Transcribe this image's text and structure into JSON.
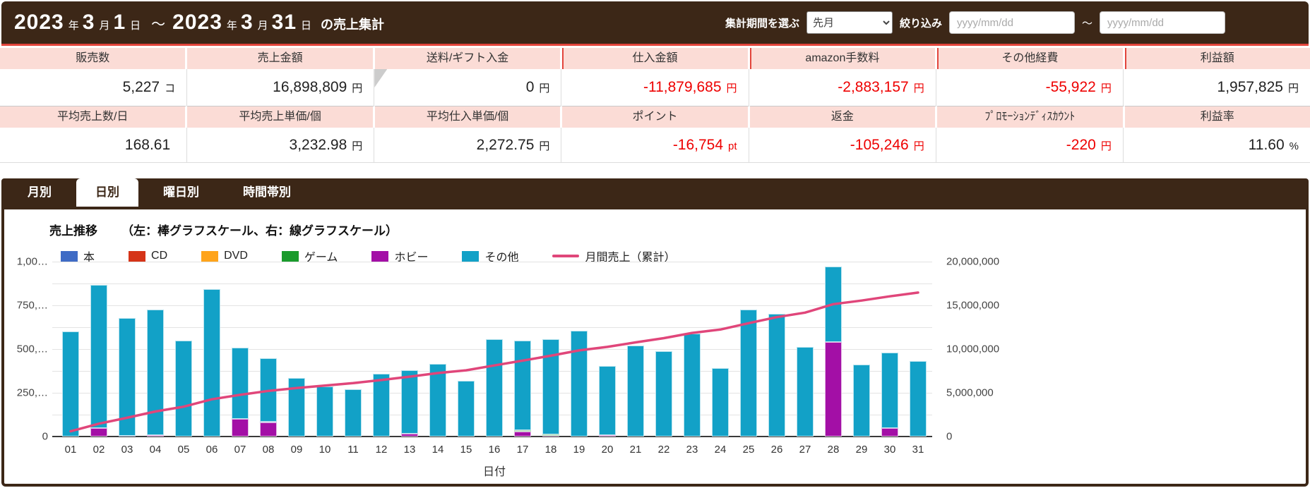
{
  "header": {
    "date_from": {
      "year": "2023",
      "month": "3",
      "day": "1"
    },
    "date_to": {
      "year": "2023",
      "month": "3",
      "day": "31"
    },
    "units": {
      "year": "年",
      "month": "月",
      "day": "日"
    },
    "range_separator": "～",
    "suffix": "の売上集計",
    "period_label": "集計期間を選ぶ",
    "period_value": "先月",
    "filter_label": "絞り込み",
    "date_placeholder": "yyyy/mm/dd",
    "between": "～"
  },
  "summary": {
    "rows": [
      {
        "cells": [
          {
            "header": "販売数",
            "value": "5,227",
            "unit": "コ",
            "negative": false
          },
          {
            "header": "売上金額",
            "value": "16,898,809",
            "unit": "円",
            "negative": false
          },
          {
            "header": "送料/ギフト入金",
            "value": "0",
            "unit": "円",
            "negative": false,
            "notch": true
          },
          {
            "header": "仕入金額",
            "value": "-11,879,685",
            "unit": "円",
            "negative": true,
            "accent": true
          },
          {
            "header": "amazon手数料",
            "value": "-2,883,157",
            "unit": "円",
            "negative": true,
            "accent": true
          },
          {
            "header": "その他経費",
            "value": "-55,922",
            "unit": "円",
            "negative": true,
            "accent": true
          },
          {
            "header": "利益額",
            "value": "1,957,825",
            "unit": "円",
            "negative": false,
            "accent": true
          }
        ]
      },
      {
        "cells": [
          {
            "header": "平均売上数/日",
            "value": "168.61",
            "unit": "",
            "negative": false
          },
          {
            "header": "平均売上単価/個",
            "value": "3,232.98",
            "unit": "円",
            "negative": false
          },
          {
            "header": "平均仕入単価/個",
            "value": "2,272.75",
            "unit": "円",
            "negative": false
          },
          {
            "header": "ポイント",
            "value": "-16,754",
            "unit": "pt",
            "negative": true
          },
          {
            "header": "返金",
            "value": "-105,246",
            "unit": "円",
            "negative": true
          },
          {
            "header": "ﾌﾟﾛﾓｰｼｮﾝﾃﾞｨｽｶｳﾝﾄ",
            "value": "-220",
            "unit": "円",
            "negative": true
          },
          {
            "header": "利益率",
            "value": "11.60",
            "unit": "%",
            "negative": false
          }
        ]
      }
    ]
  },
  "tabs": {
    "items": [
      {
        "label": "月別",
        "active": false
      },
      {
        "label": "日別",
        "active": true
      },
      {
        "label": "曜日別",
        "active": false
      },
      {
        "label": "時間帯別",
        "active": false
      }
    ]
  },
  "chart": {
    "title": "売上推移",
    "subtitle": "（左：棒グラフスケール、右：線グラフスケール）",
    "xlabel": "日付",
    "colors": {
      "book": "#3f6bc5",
      "cd": "#d53418",
      "dvd": "#ffa41b",
      "game": "#1a9b2c",
      "hobby": "#a30fa6",
      "other": "#12a1c7",
      "line": "#e0467a",
      "brown": "#3c2717",
      "pink": "#fbdcd6",
      "accent_red": "#e2453c",
      "negative_red": "#ee0000"
    },
    "legend": [
      {
        "label": "本",
        "key": "book",
        "swatch": "box"
      },
      {
        "label": "CD",
        "key": "cd",
        "swatch": "box"
      },
      {
        "label": "DVD",
        "key": "dvd",
        "swatch": "box"
      },
      {
        "label": "ゲーム",
        "key": "game",
        "swatch": "box"
      },
      {
        "label": "ホビー",
        "key": "hobby",
        "swatch": "box"
      },
      {
        "label": "その他",
        "key": "other",
        "swatch": "box"
      },
      {
        "label": "月間売上（累計）",
        "key": "line",
        "swatch": "line"
      }
    ]
  },
  "chart_data": {
    "type": "bar",
    "subtype": "stacked-bars-with-cumulative-line",
    "categories": [
      "01",
      "02",
      "03",
      "04",
      "05",
      "06",
      "07",
      "08",
      "09",
      "10",
      "11",
      "12",
      "13",
      "14",
      "15",
      "16",
      "17",
      "18",
      "19",
      "20",
      "21",
      "22",
      "23",
      "24",
      "25",
      "26",
      "27",
      "28",
      "29",
      "30",
      "31"
    ],
    "stack_order": [
      "hobby",
      "book",
      "cd",
      "dvd",
      "game",
      "other"
    ],
    "series": [
      {
        "name": "本",
        "key": "book",
        "values": [
          0,
          0,
          6000,
          0,
          0,
          0,
          0,
          6000,
          0,
          0,
          0,
          0,
          0,
          0,
          0,
          0,
          0,
          0,
          0,
          0,
          0,
          0,
          0,
          0,
          0,
          0,
          0,
          0,
          0,
          0,
          0
        ]
      },
      {
        "name": "CD",
        "key": "cd",
        "values": [
          0,
          0,
          0,
          0,
          0,
          0,
          0,
          0,
          0,
          0,
          0,
          0,
          0,
          0,
          0,
          0,
          0,
          0,
          0,
          0,
          0,
          0,
          0,
          0,
          0,
          0,
          0,
          0,
          0,
          0,
          0
        ]
      },
      {
        "name": "DVD",
        "key": "dvd",
        "values": [
          0,
          0,
          0,
          0,
          0,
          0,
          0,
          0,
          0,
          0,
          0,
          0,
          0,
          0,
          0,
          0,
          0,
          0,
          0,
          0,
          0,
          0,
          0,
          0,
          0,
          0,
          0,
          0,
          0,
          0,
          0
        ]
      },
      {
        "name": "ゲーム",
        "key": "game",
        "values": [
          0,
          0,
          0,
          0,
          0,
          0,
          0,
          0,
          0,
          0,
          0,
          0,
          0,
          0,
          0,
          0,
          8000,
          8000,
          0,
          0,
          0,
          0,
          0,
          0,
          0,
          0,
          0,
          0,
          0,
          0,
          0
        ]
      },
      {
        "name": "ホビー",
        "key": "hobby",
        "values": [
          0,
          48000,
          0,
          8000,
          0,
          0,
          100000,
          80000,
          0,
          0,
          0,
          0,
          15000,
          0,
          0,
          0,
          30000,
          6000,
          0,
          8000,
          0,
          0,
          0,
          0,
          0,
          0,
          0,
          540000,
          0,
          48000,
          0
        ]
      },
      {
        "name": "その他",
        "key": "other",
        "values": [
          600000,
          818000,
          670000,
          716000,
          548000,
          843000,
          410000,
          362000,
          333000,
          286000,
          271000,
          357000,
          366000,
          414000,
          319000,
          557000,
          510000,
          543000,
          605000,
          397000,
          519000,
          486000,
          590000,
          390000,
          724000,
          700000,
          512000,
          430000,
          410000,
          432000,
          430000
        ]
      }
    ],
    "line": {
      "name": "月間売上（累計）",
      "axis": "right",
      "values": [
        600000,
        1466000,
        2142000,
        2866000,
        3414000,
        4257000,
        4767000,
        5215000,
        5548000,
        5834000,
        6105000,
        6462000,
        6843000,
        7257000,
        7576000,
        8133000,
        8681000,
        9238000,
        9843000,
        10248000,
        10767000,
        11253000,
        11843000,
        12233000,
        12957000,
        13657000,
        14169000,
        15139000,
        15549000,
        16029000,
        16459000
      ]
    },
    "left_axis": {
      "min": 0,
      "max": 1000000,
      "labels": [
        "0",
        "250,…",
        "500,…",
        "750,…",
        "1,00…"
      ],
      "title": "棒グラフスケール"
    },
    "right_axis": {
      "min": 0,
      "max": 20000000,
      "labels": [
        "0",
        "5,000,000",
        "10,000,000",
        "15,000,000",
        "20,000,000"
      ],
      "title": "線グラフスケール"
    },
    "xlabel": "日付",
    "grid": true,
    "legend_position": "top-left"
  }
}
